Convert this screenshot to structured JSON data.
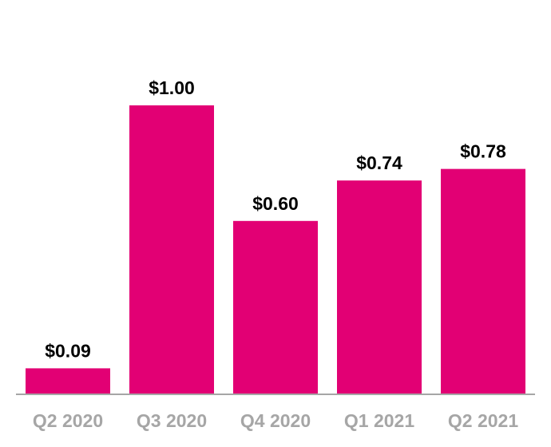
{
  "chart_data": {
    "type": "bar",
    "categories": [
      "Q2 2020",
      "Q3 2020",
      "Q4 2020",
      "Q1 2021",
      "Q2 2021"
    ],
    "values": [
      0.09,
      1.0,
      0.6,
      0.74,
      0.78
    ],
    "value_labels": [
      "$0.09",
      "$1.00",
      "$0.60",
      "$0.74",
      "$0.78"
    ],
    "title": "",
    "xlabel": "",
    "ylabel": "",
    "ylim": [
      0,
      1.0
    ],
    "grid": false,
    "legend": "none"
  },
  "colors": {
    "bar": "#E20074",
    "axis_line": "#A6A6A6",
    "tick_label": "#A6A6A6",
    "value_label": "#000000"
  }
}
